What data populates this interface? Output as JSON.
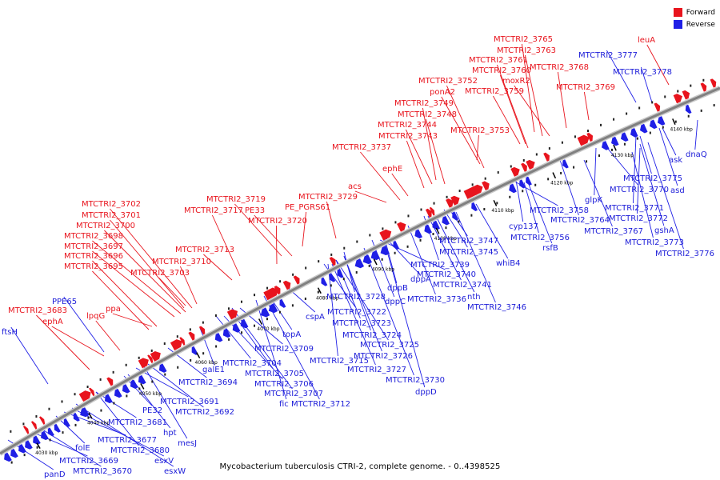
{
  "title": "Mycobacterium tuberculosis CTRI-2, complete genome. - 0..4398525",
  "legend": {
    "forward": "Forward",
    "reverse": "Reverse"
  },
  "colors": {
    "forward": "#e8141d",
    "reverse": "#1f1fe6",
    "backbone": "#808080",
    "label_forward": "#e8141d",
    "label_reverse": "#1c1cd8"
  },
  "kbp_ticks": [
    "4030 kbp",
    "4040 kbp",
    "4050 kbp",
    "4060 kbp",
    "4070 kbp",
    "4080 kbp",
    "4090 kbp",
    "4100 kbp",
    "4110 kbp",
    "4120 kbp",
    "4130 kbp",
    "4140 kbp"
  ],
  "forward_labels": [
    "MTCTRI2_3765",
    "MTCTRI2_3763",
    "MTCTRI2_3761",
    "MTCTRI2_3768",
    "MTCTRI2_3760",
    "moxR2",
    "MTCTRI2_3752",
    "MTCTRI2_3759",
    "MTCTRI2_3769",
    "ponA2",
    "MTCTRI2_3749",
    "MTCTRI2_3748",
    "MTCTRI2_3744",
    "MTCTRI2_3753",
    "MTCTRI2_3743",
    "MTCTRI2_3737",
    "ephE",
    "acs",
    "MTCTRI2_3719",
    "MTCTRI2_3729",
    "MTCTRI2_3717",
    "PE33",
    "PE_PGRS61",
    "MTCTRI2_3702",
    "MTCTRI2_3720",
    "MTCTRI2_3701",
    "MTCTRI2_3700",
    "MTCTRI2_3698",
    "MTCTRI2_3697",
    "MTCTRI2_3713",
    "MTCTRI2_3696",
    "MTCTRI2_3710",
    "MTCTRI2_3695",
    "MTCTRI2_3703",
    "MTCTRI2_3683",
    "ppa",
    "lpqG",
    "ephA",
    "leuA"
  ],
  "reverse_labels": [
    "MTCTRI2_3777",
    "MTCTRI2_3778",
    "PPE65",
    "ftsH",
    "ask",
    "dnaQ",
    "MTCTRI2_3775",
    "asd",
    "MTCTRI2_3770",
    "glpK",
    "MTCTRI2_3771",
    "MTCTRI2_3758",
    "MTCTRI2_3764",
    "MTCTRI2_3772",
    "cyp137",
    "MTCTRI2_3767",
    "gshA",
    "MTCTRI2_3756",
    "MTCTRI2_3773",
    "rsfB",
    "MTCTRI2_3776",
    "MTCTRI2_3747",
    "MTCTRI2_3745",
    "whiB4",
    "dppA",
    "MTCTRI2_3739",
    "MTCTRI2_3740",
    "dppB",
    "MTCTRI2_3741",
    "nth",
    "dppC",
    "MTCTRI2_3736",
    "MTCTRI2_3746",
    "cspA",
    "MTCTRI2_3728",
    "MTCTRI2_3722",
    "MTCTRI2_3723",
    "topA",
    "MTCTRI2_3724",
    "MTCTRI2_3725",
    "MTCTRI2_3709",
    "MTCTRI2_3715",
    "MTCTRI2_3726",
    "MTCTRI2_3704",
    "MTCTRI2_3727",
    "MTCTRI2_3705",
    "MTCTRI2_3730",
    "galE1",
    "MTCTRI2_3706",
    "MTCTRI2_3694",
    "dppD",
    "MTCTRI2_3707",
    "fic",
    "MTCTRI2_3712",
    "MTCTRI2_3691",
    "MTCTRI2_3692",
    "PE32",
    "MTCTRI2_3681",
    "hpt",
    "mesJ",
    "MTCTRI2_3677",
    "MTCTRI2_3680",
    "folE",
    "esxV",
    "MTCTRI2_3669",
    "esxW",
    "MTCTRI2_3670",
    "panD"
  ]
}
